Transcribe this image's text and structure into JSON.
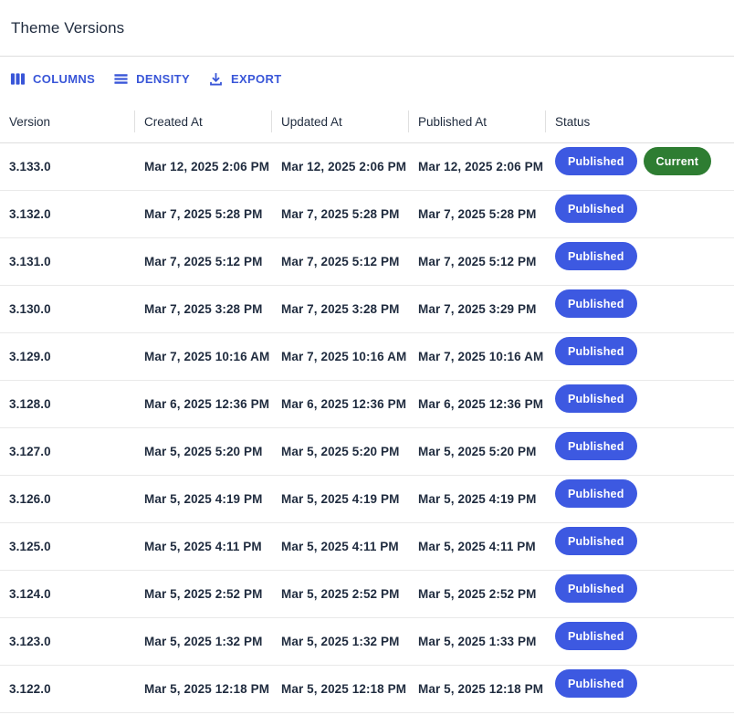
{
  "page": {
    "title": "Theme Versions"
  },
  "toolbar": {
    "buttons": [
      {
        "label": "COLUMNS",
        "icon": "view-columns-icon"
      },
      {
        "label": "DENSITY",
        "icon": "density-lines-icon"
      },
      {
        "label": "EXPORT",
        "icon": "download-icon"
      }
    ]
  },
  "table": {
    "columns": [
      {
        "label": "Version"
      },
      {
        "label": "Created At"
      },
      {
        "label": "Updated At"
      },
      {
        "label": "Published At"
      },
      {
        "label": "Status"
      }
    ],
    "rows": [
      {
        "version": "3.133.0",
        "created_at": "Mar 12, 2025 2:06 PM",
        "updated_at": "Mar 12, 2025 2:06 PM",
        "published_at": "Mar 12, 2025 2:06 PM",
        "badges": [
          {
            "label": "Published",
            "type": "published"
          },
          {
            "label": "Current",
            "type": "current"
          }
        ]
      },
      {
        "version": "3.132.0",
        "created_at": "Mar 7, 2025 5:28 PM",
        "updated_at": "Mar 7, 2025 5:28 PM",
        "published_at": "Mar 7, 2025 5:28 PM",
        "badges": [
          {
            "label": "Published",
            "type": "published"
          }
        ]
      },
      {
        "version": "3.131.0",
        "created_at": "Mar 7, 2025 5:12 PM",
        "updated_at": "Mar 7, 2025 5:12 PM",
        "published_at": "Mar 7, 2025 5:12 PM",
        "badges": [
          {
            "label": "Published",
            "type": "published"
          }
        ]
      },
      {
        "version": "3.130.0",
        "created_at": "Mar 7, 2025 3:28 PM",
        "updated_at": "Mar 7, 2025 3:28 PM",
        "published_at": "Mar 7, 2025 3:29 PM",
        "badges": [
          {
            "label": "Published",
            "type": "published"
          }
        ]
      },
      {
        "version": "3.129.0",
        "created_at": "Mar 7, 2025 10:16 AM",
        "updated_at": "Mar 7, 2025 10:16 AM",
        "published_at": "Mar 7, 2025 10:16 AM",
        "badges": [
          {
            "label": "Published",
            "type": "published"
          }
        ]
      },
      {
        "version": "3.128.0",
        "created_at": "Mar 6, 2025 12:36 PM",
        "updated_at": "Mar 6, 2025 12:36 PM",
        "published_at": "Mar 6, 2025 12:36 PM",
        "badges": [
          {
            "label": "Published",
            "type": "published"
          }
        ]
      },
      {
        "version": "3.127.0",
        "created_at": "Mar 5, 2025 5:20 PM",
        "updated_at": "Mar 5, 2025 5:20 PM",
        "published_at": "Mar 5, 2025 5:20 PM",
        "badges": [
          {
            "label": "Published",
            "type": "published"
          }
        ]
      },
      {
        "version": "3.126.0",
        "created_at": "Mar 5, 2025 4:19 PM",
        "updated_at": "Mar 5, 2025 4:19 PM",
        "published_at": "Mar 5, 2025 4:19 PM",
        "badges": [
          {
            "label": "Published",
            "type": "published"
          }
        ]
      },
      {
        "version": "3.125.0",
        "created_at": "Mar 5, 2025 4:11 PM",
        "updated_at": "Mar 5, 2025 4:11 PM",
        "published_at": "Mar 5, 2025 4:11 PM",
        "badges": [
          {
            "label": "Published",
            "type": "published"
          }
        ]
      },
      {
        "version": "3.124.0",
        "created_at": "Mar 5, 2025 2:52 PM",
        "updated_at": "Mar 5, 2025 2:52 PM",
        "published_at": "Mar 5, 2025 2:52 PM",
        "badges": [
          {
            "label": "Published",
            "type": "published"
          }
        ]
      },
      {
        "version": "3.123.0",
        "created_at": "Mar 5, 2025 1:32 PM",
        "updated_at": "Mar 5, 2025 1:32 PM",
        "published_at": "Mar 5, 2025 1:33 PM",
        "badges": [
          {
            "label": "Published",
            "type": "published"
          }
        ]
      },
      {
        "version": "3.122.0",
        "created_at": "Mar 5, 2025 12:18 PM",
        "updated_at": "Mar 5, 2025 12:18 PM",
        "published_at": "Mar 5, 2025 12:18 PM",
        "badges": [
          {
            "label": "Published",
            "type": "published"
          }
        ]
      }
    ]
  },
  "colors": {
    "accent_blue": "#3956d8",
    "badge_published": "#3d59e1",
    "badge_current": "#2e7d32",
    "text_dark": "#1f2b3e",
    "divider_strong": "#dedede",
    "divider": "#e9e9e9"
  }
}
